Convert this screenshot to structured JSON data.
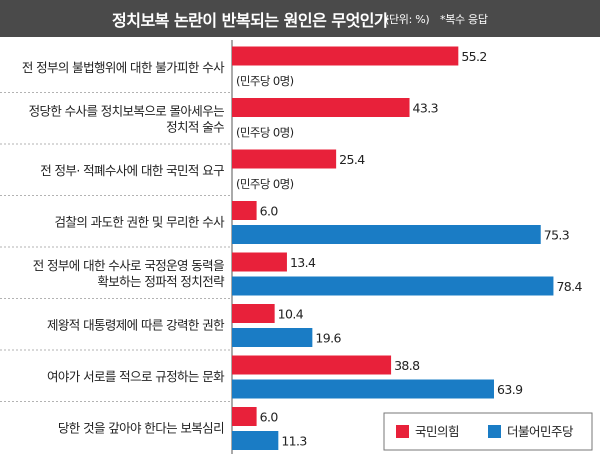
{
  "header": {
    "title": "정치보복 논란이 반복되는 원인은 무엇인가",
    "unit": "(단위: %)",
    "note": "*복수 응답"
  },
  "colors": {
    "ppp": "#e8213a",
    "dem": "#1a7cc5",
    "header_bg": "#4a4a4a"
  },
  "chart_data": {
    "type": "bar",
    "orientation": "horizontal",
    "categories": [
      [
        "전 정부의 불법행위에 대한 불가피한 수사"
      ],
      [
        "정당한 수사를 정치보복으로 몰아세우는",
        "정치적 술수"
      ],
      [
        "전 정부· 적폐수사에 대한 국민적 요구"
      ],
      [
        "검찰의 과도한 권한 및 무리한 수사"
      ],
      [
        "전 정부에 대한 수사로 국정운영 동력을",
        "확보하는 정파적 정치전략"
      ],
      [
        "제왕적 대통령제에 따른 강력한 권한"
      ],
      [
        "여야가 서로를 적으로 규정하는 문화"
      ],
      [
        "당한 것을 갚아야 한다는 보복심리"
      ]
    ],
    "series": [
      {
        "name": "국민의힘",
        "values": [
          55.2,
          43.3,
          25.4,
          6.0,
          13.4,
          10.4,
          38.8,
          6.0
        ]
      },
      {
        "name": "더불어민주당",
        "values": [
          null,
          null,
          null,
          75.3,
          78.4,
          19.6,
          63.9,
          11.3
        ],
        "zero_notes": [
          "(민주당 0명)",
          "(민주당 0명)",
          "(민주당 0명)",
          null,
          null,
          null,
          null,
          null
        ]
      }
    ],
    "legend_position": "bottom-right",
    "grid": false
  }
}
